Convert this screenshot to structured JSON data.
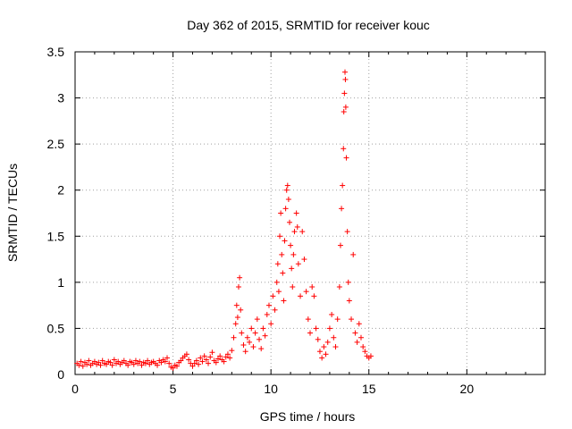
{
  "chart_data": {
    "type": "scatter",
    "title": "Day 362 of 2015, SRMTID for receiver kouc",
    "xlabel": "GPS time / hours",
    "ylabel": "SRMTID / TECUs",
    "xlim": [
      0,
      24
    ],
    "ylim": [
      0,
      3.5
    ],
    "x_ticks": [
      0,
      5,
      10,
      15,
      20
    ],
    "x_tick_labels": [
      "0",
      "5",
      "10",
      "15",
      "20"
    ],
    "y_ticks": [
      0,
      0.5,
      1,
      1.5,
      2,
      2.5,
      3,
      3.5
    ],
    "y_tick_labels": [
      "0",
      "0.5",
      "1",
      "1.5",
      "2",
      "2.5",
      "3",
      "3.5"
    ],
    "grid": true,
    "marker": "+",
    "color": "#ff0000",
    "series": [
      {
        "points": [
          [
            0.1,
            0.12
          ],
          [
            0.2,
            0.1
          ],
          [
            0.3,
            0.14
          ],
          [
            0.4,
            0.09
          ],
          [
            0.5,
            0.13
          ],
          [
            0.6,
            0.11
          ],
          [
            0.7,
            0.15
          ],
          [
            0.8,
            0.1
          ],
          [
            0.9,
            0.12
          ],
          [
            1.0,
            0.14
          ],
          [
            1.1,
            0.11
          ],
          [
            1.2,
            0.13
          ],
          [
            1.3,
            0.1
          ],
          [
            1.4,
            0.15
          ],
          [
            1.5,
            0.12
          ],
          [
            1.6,
            0.11
          ],
          [
            1.7,
            0.14
          ],
          [
            1.8,
            0.13
          ],
          [
            1.9,
            0.1
          ],
          [
            2.0,
            0.16
          ],
          [
            2.1,
            0.12
          ],
          [
            2.2,
            0.14
          ],
          [
            2.3,
            0.11
          ],
          [
            2.4,
            0.13
          ],
          [
            2.5,
            0.15
          ],
          [
            2.6,
            0.12
          ],
          [
            2.7,
            0.1
          ],
          [
            2.8,
            0.14
          ],
          [
            2.9,
            0.13
          ],
          [
            3.0,
            0.11
          ],
          [
            3.1,
            0.15
          ],
          [
            3.2,
            0.12
          ],
          [
            3.3,
            0.14
          ],
          [
            3.4,
            0.1
          ],
          [
            3.5,
            0.13
          ],
          [
            3.6,
            0.12
          ],
          [
            3.7,
            0.15
          ],
          [
            3.8,
            0.11
          ],
          [
            3.9,
            0.13
          ],
          [
            4.0,
            0.14
          ],
          [
            4.1,
            0.12
          ],
          [
            4.2,
            0.1
          ],
          [
            4.3,
            0.15
          ],
          [
            4.4,
            0.13
          ],
          [
            4.5,
            0.16
          ],
          [
            4.6,
            0.14
          ],
          [
            4.7,
            0.18
          ],
          [
            4.8,
            0.12
          ],
          [
            4.9,
            0.08
          ],
          [
            5.0,
            0.07
          ],
          [
            5.1,
            0.1
          ],
          [
            5.2,
            0.09
          ],
          [
            5.3,
            0.13
          ],
          [
            5.4,
            0.15
          ],
          [
            5.5,
            0.18
          ],
          [
            5.6,
            0.2
          ],
          [
            5.7,
            0.22
          ],
          [
            5.8,
            0.16
          ],
          [
            5.9,
            0.12
          ],
          [
            6.0,
            0.09
          ],
          [
            6.1,
            0.12
          ],
          [
            6.2,
            0.15
          ],
          [
            6.3,
            0.11
          ],
          [
            6.4,
            0.18
          ],
          [
            6.5,
            0.14
          ],
          [
            6.6,
            0.2
          ],
          [
            6.7,
            0.16
          ],
          [
            6.8,
            0.12
          ],
          [
            6.9,
            0.19
          ],
          [
            7.0,
            0.24
          ],
          [
            7.1,
            0.15
          ],
          [
            7.2,
            0.13
          ],
          [
            7.3,
            0.17
          ],
          [
            7.4,
            0.2
          ],
          [
            7.5,
            0.16
          ],
          [
            7.6,
            0.14
          ],
          [
            7.7,
            0.19
          ],
          [
            7.8,
            0.22
          ],
          [
            7.9,
            0.18
          ],
          [
            8.0,
            0.26
          ],
          [
            8.1,
            0.4
          ],
          [
            8.2,
            0.55
          ],
          [
            8.25,
            0.75
          ],
          [
            8.3,
            0.62
          ],
          [
            8.35,
            0.95
          ],
          [
            8.4,
            1.05
          ],
          [
            8.45,
            0.7
          ],
          [
            8.5,
            0.45
          ],
          [
            8.6,
            0.32
          ],
          [
            8.7,
            0.25
          ],
          [
            8.8,
            0.4
          ],
          [
            8.9,
            0.35
          ],
          [
            9.0,
            0.5
          ],
          [
            9.1,
            0.3
          ],
          [
            9.2,
            0.45
          ],
          [
            9.3,
            0.6
          ],
          [
            9.4,
            0.38
          ],
          [
            9.5,
            0.28
          ],
          [
            9.6,
            0.5
          ],
          [
            9.7,
            0.42
          ],
          [
            9.8,
            0.65
          ],
          [
            9.9,
            0.75
          ],
          [
            10.0,
            0.55
          ],
          [
            10.1,
            0.85
          ],
          [
            10.2,
            0.7
          ],
          [
            10.3,
            1.0
          ],
          [
            10.35,
            1.2
          ],
          [
            10.4,
            0.9
          ],
          [
            10.45,
            1.5
          ],
          [
            10.5,
            1.75
          ],
          [
            10.55,
            1.3
          ],
          [
            10.6,
            1.1
          ],
          [
            10.65,
            0.8
          ],
          [
            10.7,
            1.45
          ],
          [
            10.75,
            1.8
          ],
          [
            10.8,
            2.0
          ],
          [
            10.85,
            2.05
          ],
          [
            10.9,
            1.9
          ],
          [
            10.95,
            1.65
          ],
          [
            11.0,
            1.4
          ],
          [
            11.05,
            1.15
          ],
          [
            11.1,
            0.95
          ],
          [
            11.15,
            1.3
          ],
          [
            11.2,
            1.55
          ],
          [
            11.3,
            1.75
          ],
          [
            11.35,
            1.6
          ],
          [
            11.4,
            1.2
          ],
          [
            11.5,
            0.85
          ],
          [
            11.6,
            1.55
          ],
          [
            11.7,
            1.25
          ],
          [
            11.8,
            0.9
          ],
          [
            11.9,
            0.6
          ],
          [
            12.0,
            0.45
          ],
          [
            12.1,
            0.95
          ],
          [
            12.2,
            0.85
          ],
          [
            12.3,
            0.5
          ],
          [
            12.4,
            0.38
          ],
          [
            12.5,
            0.25
          ],
          [
            12.6,
            0.18
          ],
          [
            12.7,
            0.3
          ],
          [
            12.8,
            0.22
          ],
          [
            12.9,
            0.35
          ],
          [
            13.0,
            0.5
          ],
          [
            13.1,
            0.65
          ],
          [
            13.2,
            0.4
          ],
          [
            13.3,
            0.3
          ],
          [
            13.4,
            0.6
          ],
          [
            13.5,
            0.95
          ],
          [
            13.55,
            1.4
          ],
          [
            13.6,
            1.8
          ],
          [
            13.65,
            2.05
          ],
          [
            13.7,
            2.45
          ],
          [
            13.72,
            2.85
          ],
          [
            13.75,
            3.05
          ],
          [
            13.78,
            3.28
          ],
          [
            13.8,
            3.2
          ],
          [
            13.82,
            2.9
          ],
          [
            13.85,
            2.35
          ],
          [
            13.9,
            1.55
          ],
          [
            13.95,
            1.0
          ],
          [
            14.0,
            0.8
          ],
          [
            14.1,
            0.6
          ],
          [
            14.2,
            1.3
          ],
          [
            14.3,
            0.45
          ],
          [
            14.4,
            0.35
          ],
          [
            14.5,
            0.55
          ],
          [
            14.6,
            0.4
          ],
          [
            14.7,
            0.3
          ],
          [
            14.8,
            0.25
          ],
          [
            14.9,
            0.2
          ],
          [
            15.0,
            0.18
          ],
          [
            15.1,
            0.2
          ]
        ]
      }
    ]
  }
}
